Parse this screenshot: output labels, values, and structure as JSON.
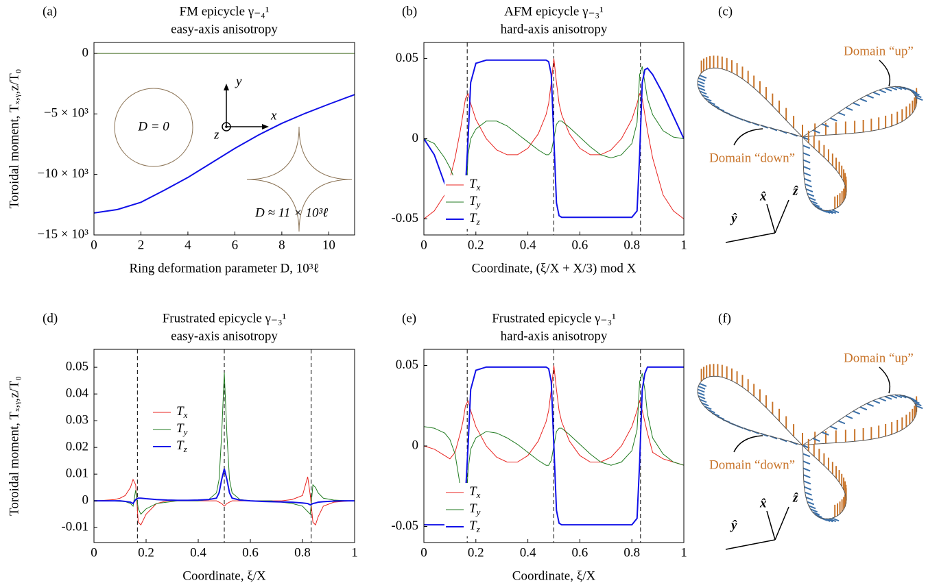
{
  "chart_data": [
    {
      "type": "line",
      "panel_label": "(a)",
      "title": "FM epicycle γ₋₄¹",
      "subtitle": "easy-axis anisotropy",
      "xlabel": "Ring deformation parameter D, 10³ℓ",
      "ylabel": "Toroidal moment, Tₓ,ᵧ,z/T₀",
      "x": [
        0,
        1,
        2,
        3,
        4,
        5,
        6,
        7,
        8,
        9,
        10,
        11,
        11.1
      ],
      "series": [
        {
          "name": "Tx",
          "color": "#e8231f",
          "values": [
            0,
            0,
            0,
            0,
            0,
            0,
            0,
            0,
            0,
            0,
            0,
            0,
            0
          ]
        },
        {
          "name": "Ty",
          "color": "#1f7a1f",
          "values": [
            0,
            0,
            0,
            0,
            0,
            0,
            0,
            0,
            0,
            0,
            0,
            0,
            0
          ]
        },
        {
          "name": "Tz",
          "color": "#1010e8",
          "values": [
            -13180,
            -12900,
            -12300,
            -11300,
            -10250,
            -9050,
            -7850,
            -6750,
            -5780,
            -4950,
            -4200,
            -3480,
            -3400
          ]
        }
      ],
      "xlim": [
        0,
        11.1
      ],
      "ylim": [
        -15000,
        900
      ],
      "xticks": [
        0,
        2,
        4,
        6,
        8,
        10
      ],
      "yticks": [
        0,
        {
          "value": -5000,
          "label": "−5 × 10³"
        },
        {
          "value": -10000,
          "label": "−10 × 10³"
        },
        {
          "value": -15000,
          "label": "−15 × 10³"
        }
      ],
      "annotations": [
        "D = 0",
        "D ≈ 11 × 10³ℓ",
        "x",
        "y",
        "z"
      ]
    },
    {
      "type": "line",
      "panel_label": "(b)",
      "title": "AFM epicycle γ₋₃¹",
      "subtitle": "hard-axis anisotropy",
      "xlabel": "Coordinate, (ξ/X + X/3)  mod X",
      "x": [
        0,
        0.04,
        0.08,
        0.1,
        0.12,
        0.14,
        0.15,
        0.16,
        0.17,
        0.18,
        0.2,
        0.24,
        0.28,
        0.32,
        0.36,
        0.4,
        0.44,
        0.47,
        0.48,
        0.49,
        0.5,
        0.51,
        0.52,
        0.53,
        0.56,
        0.6,
        0.64,
        0.68,
        0.72,
        0.76,
        0.8,
        0.82,
        0.83,
        0.84,
        0.85,
        0.86,
        0.88,
        0.92,
        0.96,
        1
      ],
      "series": [
        {
          "name": "Tx",
          "color": "#e8231f",
          "values": [
            -0.05,
            -0.045,
            -0.035,
            -0.025,
            -0.012,
            0.005,
            0.015,
            0.025,
            0.028,
            0.022,
            0.012,
            0,
            -0.007,
            -0.01,
            -0.01,
            -0.006,
            0.003,
            0.015,
            0.022,
            0.035,
            0.05,
            0.035,
            0.022,
            0.015,
            0.003,
            -0.006,
            -0.01,
            -0.01,
            -0.007,
            0,
            0.012,
            0.022,
            0.028,
            0.025,
            0.015,
            0.005,
            -0.012,
            -0.035,
            -0.045,
            -0.05
          ]
        },
        {
          "name": "Ty",
          "color": "#1f7a1f",
          "values": [
            0,
            -0.003,
            -0.012,
            -0.018,
            -0.026,
            -0.036,
            -0.043,
            -0.045,
            -0.01,
            0,
            0.006,
            0.011,
            0.011,
            0.008,
            0.003,
            -0.002,
            -0.007,
            -0.01,
            -0.01,
            -0.008,
            0,
            0.009,
            0.011,
            0.011,
            0.007,
            0.001,
            -0.005,
            -0.01,
            -0.012,
            -0.01,
            -0.003,
            0.01,
            0.04,
            0.045,
            0.035,
            0.025,
            0.015,
            0.005,
            0.001,
            0
          ]
        },
        {
          "name": "Tz",
          "color": "#1010e8",
          "values": [
            0,
            -0.01,
            -0.028,
            -0.036,
            -0.042,
            -0.044,
            -0.043,
            -0.03,
            0,
            0.035,
            0.047,
            0.049,
            0.049,
            0.049,
            0.049,
            0.049,
            0.049,
            0.049,
            0.048,
            0.04,
            0,
            -0.04,
            -0.048,
            -0.049,
            -0.049,
            -0.049,
            -0.049,
            -0.049,
            -0.049,
            -0.049,
            -0.049,
            -0.045,
            -0.01,
            0.035,
            0.043,
            0.044,
            0.04,
            0.028,
            0.014,
            0
          ]
        }
      ],
      "xlim": [
        0,
        1
      ],
      "ylim": [
        -0.06,
        0.06
      ],
      "xticks": [
        0,
        0.2,
        0.4,
        0.6,
        0.8,
        1
      ],
      "yticks": [
        -0.05,
        0,
        0.05
      ],
      "vlines": [
        0.1667,
        0.5,
        0.8333
      ],
      "legend": "lower left"
    },
    {
      "type": "line",
      "panel_label": "(d)",
      "title": "Frustrated epicycle γ₋₃¹",
      "subtitle": "easy-axis anisotropy",
      "xlabel": "Coordinate, ξ/X",
      "ylabel": "Toroidal moment, Tₓ,ᵧ,z/T₀",
      "x": [
        0,
        0.04,
        0.08,
        0.1,
        0.12,
        0.14,
        0.15,
        0.16,
        0.17,
        0.18,
        0.2,
        0.24,
        0.28,
        0.32,
        0.36,
        0.4,
        0.44,
        0.47,
        0.48,
        0.49,
        0.5,
        0.51,
        0.52,
        0.53,
        0.56,
        0.6,
        0.64,
        0.68,
        0.72,
        0.76,
        0.8,
        0.82,
        0.83,
        0.84,
        0.85,
        0.86,
        0.88,
        0.92,
        0.96,
        1
      ],
      "series": [
        {
          "name": "Tx",
          "color": "#e8231f",
          "values": [
            0,
            0.0002,
            0.0005,
            0.001,
            0.002,
            0.005,
            0.008,
            0.006,
            -0.008,
            -0.009,
            -0.005,
            -0.001,
            0,
            0,
            0,
            0,
            0,
            0,
            -0.0005,
            -0.001,
            -0.002,
            -0.001,
            -0.0005,
            0,
            0,
            0,
            0,
            0,
            0,
            0.0005,
            0.002,
            0.009,
            0.002,
            -0.008,
            -0.009,
            -0.006,
            -0.002,
            -0.0005,
            -0.0002,
            0
          ]
        },
        {
          "name": "Ty",
          "color": "#1f7a1f",
          "values": [
            0,
            0,
            -0.0001,
            -0.0002,
            -0.0003,
            -0.001,
            -0.002,
            0.004,
            -0.003,
            -0.005,
            -0.003,
            -0.001,
            -0.0005,
            0,
            0,
            0,
            0.0005,
            0.003,
            0.008,
            0.025,
            0.048,
            0.025,
            0.008,
            0.003,
            0.0005,
            0,
            0,
            0,
            -0.0005,
            -0.001,
            -0.002,
            -0.004,
            -0.005,
            0.006,
            0.005,
            0.003,
            0.001,
            0.0003,
            0.0001,
            0
          ]
        },
        {
          "name": "Tz",
          "color": "#1010e8",
          "values": [
            0,
            0,
            0,
            0,
            -0.0002,
            -0.0005,
            -0.001,
            0.0005,
            0.001,
            0.001,
            0.0008,
            0.0005,
            0.0003,
            0.0002,
            0.0002,
            0.0003,
            0.0005,
            0.001,
            0.003,
            0.008,
            0.012,
            0.008,
            0.003,
            0.001,
            0.0003,
            0,
            -0.0002,
            -0.0003,
            -0.0004,
            -0.0005,
            -0.0008,
            -0.001,
            -0.0015,
            -0.001,
            -0.0008,
            -0.0005,
            -0.0003,
            -0.0001,
            0,
            0
          ]
        }
      ],
      "xlim": [
        0,
        1
      ],
      "ylim": [
        -0.0156,
        0.0567
      ],
      "xticks": [
        0,
        0.2,
        0.4,
        0.6,
        0.8,
        1
      ],
      "yticks": [
        -0.01,
        0,
        0.01,
        0.02,
        0.03,
        0.04,
        0.05
      ],
      "vlines": [
        0.1667,
        0.5,
        0.8333
      ],
      "legend": "center left"
    },
    {
      "type": "line",
      "panel_label": "(e)",
      "title": "Frustrated epicycle γ₋₃¹",
      "subtitle": "hard-axis anisotropy",
      "xlabel": "Coordinate, ξ/X",
      "x": [
        0,
        0.04,
        0.08,
        0.1,
        0.12,
        0.14,
        0.15,
        0.16,
        0.17,
        0.18,
        0.2,
        0.24,
        0.28,
        0.32,
        0.36,
        0.4,
        0.44,
        0.47,
        0.48,
        0.49,
        0.5,
        0.51,
        0.52,
        0.53,
        0.56,
        0.6,
        0.64,
        0.68,
        0.72,
        0.76,
        0.8,
        0.82,
        0.83,
        0.84,
        0.85,
        0.86,
        0.88,
        0.92,
        0.96,
        1
      ],
      "series": [
        {
          "name": "Tx",
          "color": "#e8231f",
          "values": [
            0,
            -0.002,
            -0.006,
            -0.008,
            -0.004,
            0.008,
            0.015,
            0.025,
            0.028,
            0.022,
            0.012,
            0,
            -0.007,
            -0.01,
            -0.01,
            -0.006,
            0.003,
            0.015,
            0.022,
            0.035,
            0.05,
            0.035,
            0.022,
            0.015,
            0.003,
            -0.006,
            -0.01,
            -0.01,
            -0.007,
            0,
            0.012,
            0.022,
            0.028,
            0.022,
            0.015,
            0.008,
            -0.004,
            -0.008,
            -0.01,
            -0.012
          ]
        },
        {
          "name": "Ty",
          "color": "#1f7a1f",
          "values": [
            0.012,
            0.011,
            0.008,
            0.004,
            -0.005,
            -0.025,
            -0.038,
            -0.044,
            -0.015,
            -0.002,
            0.005,
            0.009,
            0.008,
            0.005,
            0.001,
            -0.004,
            -0.009,
            -0.012,
            -0.012,
            -0.009,
            0,
            0.009,
            0.011,
            0.011,
            0.007,
            0.001,
            -0.005,
            -0.01,
            -0.012,
            -0.01,
            -0.003,
            0.01,
            0.04,
            0.045,
            0.035,
            0.02,
            0.005,
            -0.005,
            -0.01,
            -0.012
          ]
        },
        {
          "name": "Tz",
          "color": "#1010e8",
          "values": [
            -0.049,
            -0.049,
            -0.049,
            -0.049,
            -0.049,
            -0.048,
            -0.045,
            -0.03,
            0,
            0.035,
            0.047,
            0.049,
            0.049,
            0.049,
            0.049,
            0.049,
            0.049,
            0.049,
            0.048,
            0.04,
            0,
            -0.04,
            -0.048,
            -0.049,
            -0.049,
            -0.049,
            -0.049,
            -0.049,
            -0.049,
            -0.049,
            -0.049,
            -0.045,
            -0.01,
            0.035,
            0.045,
            0.049,
            0.049,
            0.049,
            0.049,
            0.049
          ]
        }
      ],
      "xlim": [
        0,
        1
      ],
      "ylim": [
        -0.06,
        0.06
      ],
      "xticks": [
        0,
        0.2,
        0.4,
        0.6,
        0.8,
        1
      ],
      "yticks": [
        -0.05,
        0,
        0.05
      ],
      "vlines": [
        0.1667,
        0.5,
        0.8333
      ],
      "legend": "lower left"
    }
  ],
  "diagrams": [
    {
      "panel_label": "(c)",
      "up": "Domain “up”",
      "down": "Domain “down”",
      "axes": [
        "ŷ",
        "x̂",
        "ẑ"
      ]
    },
    {
      "panel_label": "(f)",
      "up": "Domain “up”",
      "down": "Domain “down”",
      "axes": [
        "ŷ",
        "x̂",
        "ẑ"
      ]
    }
  ]
}
